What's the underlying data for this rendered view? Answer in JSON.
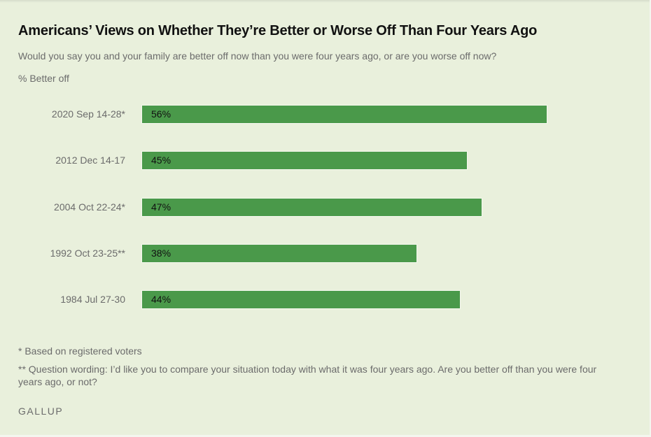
{
  "chart_data": {
    "type": "bar",
    "orientation": "horizontal",
    "title": "Americans’ Views on Whether They’re Better or Worse Off Than Four Years Ago",
    "subtitle": "Would you say you and your family are better off now than you were four years ago, or are you worse off now?",
    "unit_label": "% Better off",
    "categories": [
      "2020 Sep 14-28*",
      "2012 Dec 14-17",
      "2004 Oct 22-24*",
      "1992 Oct 23-25**",
      "1984 Jul 27-30"
    ],
    "values": [
      56,
      45,
      47,
      38,
      44
    ],
    "value_labels": [
      "56%",
      "45%",
      "47%",
      "38%",
      "44%"
    ],
    "xlim": [
      0,
      70
    ],
    "grid": false,
    "bar_color": "#4a994a"
  },
  "footnotes": [
    "* Based on registered voters",
    "** Question wording: I’d like you to compare your situation today with what it was four years ago. Are you better off than you were four years ago, or not?"
  ],
  "source": "GALLUP",
  "colors": {
    "background": "#e9f0dc",
    "bar": "#4a994a",
    "text": "#111111",
    "muted": "#6b6b6b"
  }
}
